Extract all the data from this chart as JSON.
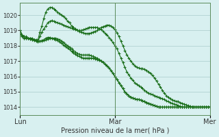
{
  "title": "Pression niveau de la mer( hPa )",
  "bg_color": "#d8f0f0",
  "grid_color": "#aacccc",
  "line_color": "#1a6e1a",
  "ylim": [
    1013.5,
    1020.8
  ],
  "yticks": [
    1014,
    1015,
    1016,
    1017,
    1018,
    1019,
    1020
  ],
  "xtick_labels": [
    "Lun",
    "Mar",
    "Mer"
  ],
  "xtick_positions": [
    0,
    48,
    96
  ],
  "total_points": 97,
  "series": [
    [
      1019.0,
      1018.7,
      1018.6,
      1018.6,
      1018.5,
      1018.5,
      1018.5,
      1018.4,
      1018.4,
      1018.4,
      1018.9,
      1019.3,
      1019.8,
      1020.2,
      1020.4,
      1020.5,
      1020.5,
      1020.4,
      1020.3,
      1020.2,
      1020.1,
      1020.0,
      1019.9,
      1019.8,
      1019.6,
      1019.5,
      1019.3,
      1019.2,
      1019.1,
      1019.0,
      1019.0,
      1019.0,
      1019.05,
      1019.1,
      1019.15,
      1019.2,
      1019.2,
      1019.2,
      1019.2,
      1019.2,
      1019.1,
      1019.05,
      1018.95,
      1018.8,
      1018.7,
      1018.55,
      1018.4,
      1018.2,
      1018.0,
      1017.8,
      1017.5,
      1017.2,
      1016.9,
      1016.6,
      1016.3,
      1016.1,
      1015.9,
      1015.75,
      1015.6,
      1015.5,
      1015.4,
      1015.3,
      1015.2,
      1015.1,
      1015.0,
      1014.9,
      1014.85,
      1014.8,
      1014.75,
      1014.7,
      1014.65,
      1014.6,
      1014.55,
      1014.5,
      1014.4,
      1014.35,
      1014.3,
      1014.25,
      1014.2,
      1014.15,
      1014.1,
      1014.05,
      1014.0,
      1014.0,
      1014.0,
      1014.0,
      1014.0,
      1014.0,
      1014.0,
      1014.0,
      1014.0,
      1014.0,
      1014.0,
      1014.0,
      1014.0,
      1014.0,
      1014.0
    ],
    [
      1018.8,
      1018.6,
      1018.5,
      1018.5,
      1018.5,
      1018.45,
      1018.4,
      1018.4,
      1018.35,
      1018.3,
      1018.3,
      1018.3,
      1018.35,
      1018.4,
      1018.45,
      1018.5,
      1018.5,
      1018.5,
      1018.5,
      1018.45,
      1018.4,
      1018.3,
      1018.2,
      1018.1,
      1018.0,
      1017.9,
      1017.8,
      1017.7,
      1017.6,
      1017.5,
      1017.45,
      1017.4,
      1017.4,
      1017.4,
      1017.4,
      1017.4,
      1017.35,
      1017.3,
      1017.25,
      1017.2,
      1017.1,
      1017.0,
      1016.9,
      1016.8,
      1016.7,
      1016.55,
      1016.4,
      1016.2,
      1016.0,
      1015.8,
      1015.6,
      1015.4,
      1015.2,
      1015.0,
      1014.85,
      1014.75,
      1014.65,
      1014.6,
      1014.55,
      1014.5,
      1014.5,
      1014.45,
      1014.4,
      1014.35,
      1014.3,
      1014.25,
      1014.2,
      1014.15,
      1014.1,
      1014.05,
      1014.0,
      1014.0,
      1014.0,
      1014.0,
      1014.0,
      1014.0,
      1014.0,
      1014.0,
      1014.0,
      1014.0,
      1014.0,
      1014.0,
      1014.0,
      1014.0,
      1014.0,
      1014.0,
      1014.0,
      1014.0,
      1014.0,
      1014.0,
      1014.0,
      1014.0,
      1014.0,
      1014.0,
      1014.0,
      1014.0,
      1014.0
    ],
    [
      1019.0,
      1018.7,
      1018.6,
      1018.55,
      1018.5,
      1018.5,
      1018.45,
      1018.4,
      1018.35,
      1018.3,
      1018.6,
      1018.9,
      1019.1,
      1019.3,
      1019.5,
      1019.6,
      1019.65,
      1019.6,
      1019.55,
      1019.5,
      1019.45,
      1019.4,
      1019.35,
      1019.3,
      1019.25,
      1019.2,
      1019.15,
      1019.1,
      1019.05,
      1019.0,
      1018.95,
      1018.9,
      1018.85,
      1018.8,
      1018.8,
      1018.8,
      1018.85,
      1018.9,
      1018.95,
      1019.0,
      1019.1,
      1019.2,
      1019.25,
      1019.3,
      1019.35,
      1019.35,
      1019.3,
      1019.2,
      1019.05,
      1018.85,
      1018.6,
      1018.3,
      1018.0,
      1017.7,
      1017.4,
      1017.2,
      1017.0,
      1016.85,
      1016.7,
      1016.6,
      1016.55,
      1016.5,
      1016.5,
      1016.45,
      1016.4,
      1016.3,
      1016.2,
      1016.05,
      1015.9,
      1015.7,
      1015.5,
      1015.3,
      1015.1,
      1014.9,
      1014.75,
      1014.65,
      1014.55,
      1014.48,
      1014.42,
      1014.38,
      1014.35,
      1014.3,
      1014.25,
      1014.2,
      1014.15,
      1014.1,
      1014.05,
      1014.02,
      1014.0,
      1014.0,
      1014.0,
      1014.0,
      1014.0,
      1014.0,
      1014.0,
      1014.0,
      1014.0
    ],
    [
      1018.8,
      1018.6,
      1018.5,
      1018.5,
      1018.5,
      1018.45,
      1018.4,
      1018.35,
      1018.3,
      1018.25,
      1018.3,
      1018.35,
      1018.4,
      1018.5,
      1018.55,
      1018.55,
      1018.5,
      1018.45,
      1018.4,
      1018.35,
      1018.25,
      1018.15,
      1018.05,
      1017.95,
      1017.85,
      1017.75,
      1017.65,
      1017.55,
      1017.45,
      1017.35,
      1017.3,
      1017.25,
      1017.2,
      1017.2,
      1017.2,
      1017.2,
      1017.2,
      1017.2,
      1017.15,
      1017.1,
      1017.05,
      1017.0,
      1016.9,
      1016.8,
      1016.7,
      1016.55,
      1016.4,
      1016.2,
      1016.0,
      1015.8,
      1015.6,
      1015.4,
      1015.2,
      1015.0,
      1014.85,
      1014.75,
      1014.65,
      1014.6,
      1014.55,
      1014.5,
      1014.5,
      1014.45,
      1014.4,
      1014.35,
      1014.3,
      1014.25,
      1014.2,
      1014.15,
      1014.1,
      1014.05,
      1014.0,
      1014.0,
      1014.0,
      1014.0,
      1014.0,
      1014.0,
      1014.0,
      1014.0,
      1014.0,
      1014.0,
      1014.0,
      1014.0,
      1014.0,
      1014.0,
      1014.0,
      1014.0,
      1014.0,
      1014.0,
      1014.0,
      1014.0,
      1014.0,
      1014.0,
      1014.0,
      1014.0,
      1014.0,
      1014.0,
      1014.0
    ]
  ]
}
